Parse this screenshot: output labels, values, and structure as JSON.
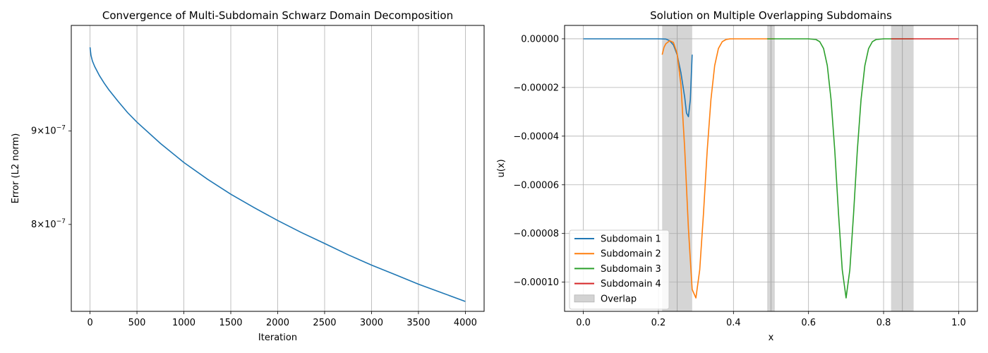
{
  "chart_data": [
    {
      "type": "line",
      "title": "Convergence of Multi-Subdomain Schwarz Domain Decomposition",
      "xlabel": "Iteration",
      "ylabel": "Error (L2 norm)",
      "yscale": "log",
      "xlim": [
        -200,
        4200
      ],
      "ylim": [
        7.17e-07,
        1.028e-06
      ],
      "grid": "x",
      "x_ticks": [
        {
          "value": 0,
          "label": "0"
        },
        {
          "value": 500,
          "label": "500"
        },
        {
          "value": 1000,
          "label": "1000"
        },
        {
          "value": 1500,
          "label": "1500"
        },
        {
          "value": 2000,
          "label": "2000"
        },
        {
          "value": 2500,
          "label": "2500"
        },
        {
          "value": 3000,
          "label": "3000"
        },
        {
          "value": 3500,
          "label": "3500"
        },
        {
          "value": 4000,
          "label": "4000"
        }
      ],
      "y_ticks": [
        {
          "value": 9e-07,
          "base": "9×10",
          "exp": "−7"
        },
        {
          "value": 8e-07,
          "base": "8×10",
          "exp": "−7"
        }
      ],
      "series": [
        {
          "color": "#1f77b4",
          "x": [
            0,
            10,
            25,
            50,
            100,
            150,
            200,
            300,
            400,
            500,
            750,
            1000,
            1250,
            1500,
            1750,
            2000,
            2250,
            2500,
            2750,
            3000,
            3250,
            3500,
            3750,
            4000
          ],
          "y": [
            1e-06,
            9.9e-07,
            9.83e-07,
            9.76e-07,
            9.65e-07,
            9.56e-07,
            9.48e-07,
            9.34e-07,
            9.21e-07,
            9.1e-07,
            8.86e-07,
            8.65e-07,
            8.47e-07,
            8.31e-07,
            8.17e-07,
            8.04e-07,
            7.92e-07,
            7.81e-07,
            7.7e-07,
            7.6e-07,
            7.51e-07,
            7.42e-07,
            7.34e-07,
            7.26e-07
          ]
        }
      ]
    },
    {
      "type": "line",
      "title": "Solution on Multiple Overlapping Subdomains",
      "xlabel": "x",
      "ylabel": "u(x)",
      "xlim": [
        -0.05,
        1.05
      ],
      "ylim": [
        -0.000112,
        5.5e-06
      ],
      "grid": "both",
      "legend_position": "lower-left",
      "x_ticks": [
        {
          "value": 0.0,
          "label": "0.0"
        },
        {
          "value": 0.2,
          "label": "0.2"
        },
        {
          "value": 0.4,
          "label": "0.4"
        },
        {
          "value": 0.6,
          "label": "0.6"
        },
        {
          "value": 0.8,
          "label": "0.8"
        },
        {
          "value": 1.0,
          "label": "1.0"
        }
      ],
      "y_ticks": [
        {
          "value": 0,
          "label": "0.00000"
        },
        {
          "value": -2e-05,
          "label": "−0.00002"
        },
        {
          "value": -4e-05,
          "label": "−0.00004"
        },
        {
          "value": -6e-05,
          "label": "−0.00006"
        },
        {
          "value": -8e-05,
          "label": "−0.00008"
        },
        {
          "value": -0.0001,
          "label": "−0.00010"
        }
      ],
      "overlaps": [
        {
          "x0": 0.21,
          "x1": 0.29,
          "divider": 0.25
        },
        {
          "x0": 0.49,
          "x1": 0.51,
          "divider": 0.5
        },
        {
          "x0": 0.82,
          "x1": 0.88,
          "divider": 0.85
        }
      ],
      "overlap_color": "#d3d3d3",
      "series": [
        {
          "name": "Subdomain 1",
          "color": "#1f77b4",
          "x": [
            0.0,
            0.1,
            0.2,
            0.22,
            0.23,
            0.24,
            0.25,
            0.26,
            0.27,
            0.275,
            0.28,
            0.285,
            0.29
          ],
          "y": [
            0,
            0,
            0,
            -1e-07,
            -8e-07,
            -2.5e-06,
            -6.5e-06,
            -1.4e-05,
            -2.4e-05,
            -3.05e-05,
            -3.2e-05,
            -2.5e-05,
            -6.5e-06
          ]
        },
        {
          "name": "Subdomain 2",
          "color": "#ff7f0e",
          "x": [
            0.21,
            0.215,
            0.22,
            0.23,
            0.24,
            0.25,
            0.26,
            0.27,
            0.28,
            0.29,
            0.3,
            0.31,
            0.32,
            0.33,
            0.34,
            0.35,
            0.36,
            0.37,
            0.38,
            0.39,
            0.4,
            0.45,
            0.5,
            0.51
          ],
          "y": [
            -6.5e-06,
            -3.5e-06,
            -2e-06,
            -8e-07,
            -1.5e-06,
            -6e-06,
            -1.9e-05,
            -4.5e-05,
            -7.8e-05,
            -0.000103,
            -0.0001065,
            -9.5e-05,
            -7.2e-05,
            -4.6e-05,
            -2.5e-05,
            -1.1e-05,
            -4e-06,
            -1.2e-06,
            -3e-07,
            -5e-08,
            0,
            0,
            0,
            0
          ]
        },
        {
          "name": "Subdomain 3",
          "color": "#2ca02c",
          "x": [
            0.49,
            0.55,
            0.6,
            0.62,
            0.63,
            0.64,
            0.65,
            0.66,
            0.67,
            0.68,
            0.69,
            0.7,
            0.71,
            0.72,
            0.73,
            0.74,
            0.75,
            0.76,
            0.77,
            0.78,
            0.8,
            0.85,
            0.88
          ],
          "y": [
            0,
            0,
            0,
            -3e-07,
            -1.2e-06,
            -4e-06,
            -1.1e-05,
            -2.5e-05,
            -4.6e-05,
            -7.2e-05,
            -9.5e-05,
            -0.0001065,
            -9.5e-05,
            -7.2e-05,
            -4.6e-05,
            -2.5e-05,
            -1.1e-05,
            -4e-06,
            -1.2e-06,
            -3e-07,
            0,
            0,
            0
          ]
        },
        {
          "name": "Subdomain 4",
          "color": "#d62728",
          "x": [
            0.82,
            0.9,
            1.0
          ],
          "y": [
            0,
            0,
            0
          ]
        }
      ],
      "legend": [
        {
          "label": "Subdomain 1",
          "kind": "line",
          "color": "#1f77b4"
        },
        {
          "label": "Subdomain 2",
          "kind": "line",
          "color": "#ff7f0e"
        },
        {
          "label": "Subdomain 3",
          "kind": "line",
          "color": "#2ca02c"
        },
        {
          "label": "Subdomain 4",
          "kind": "line",
          "color": "#d62728"
        },
        {
          "label": "Overlap",
          "kind": "patch",
          "color": "#d3d3d3"
        }
      ]
    }
  ]
}
